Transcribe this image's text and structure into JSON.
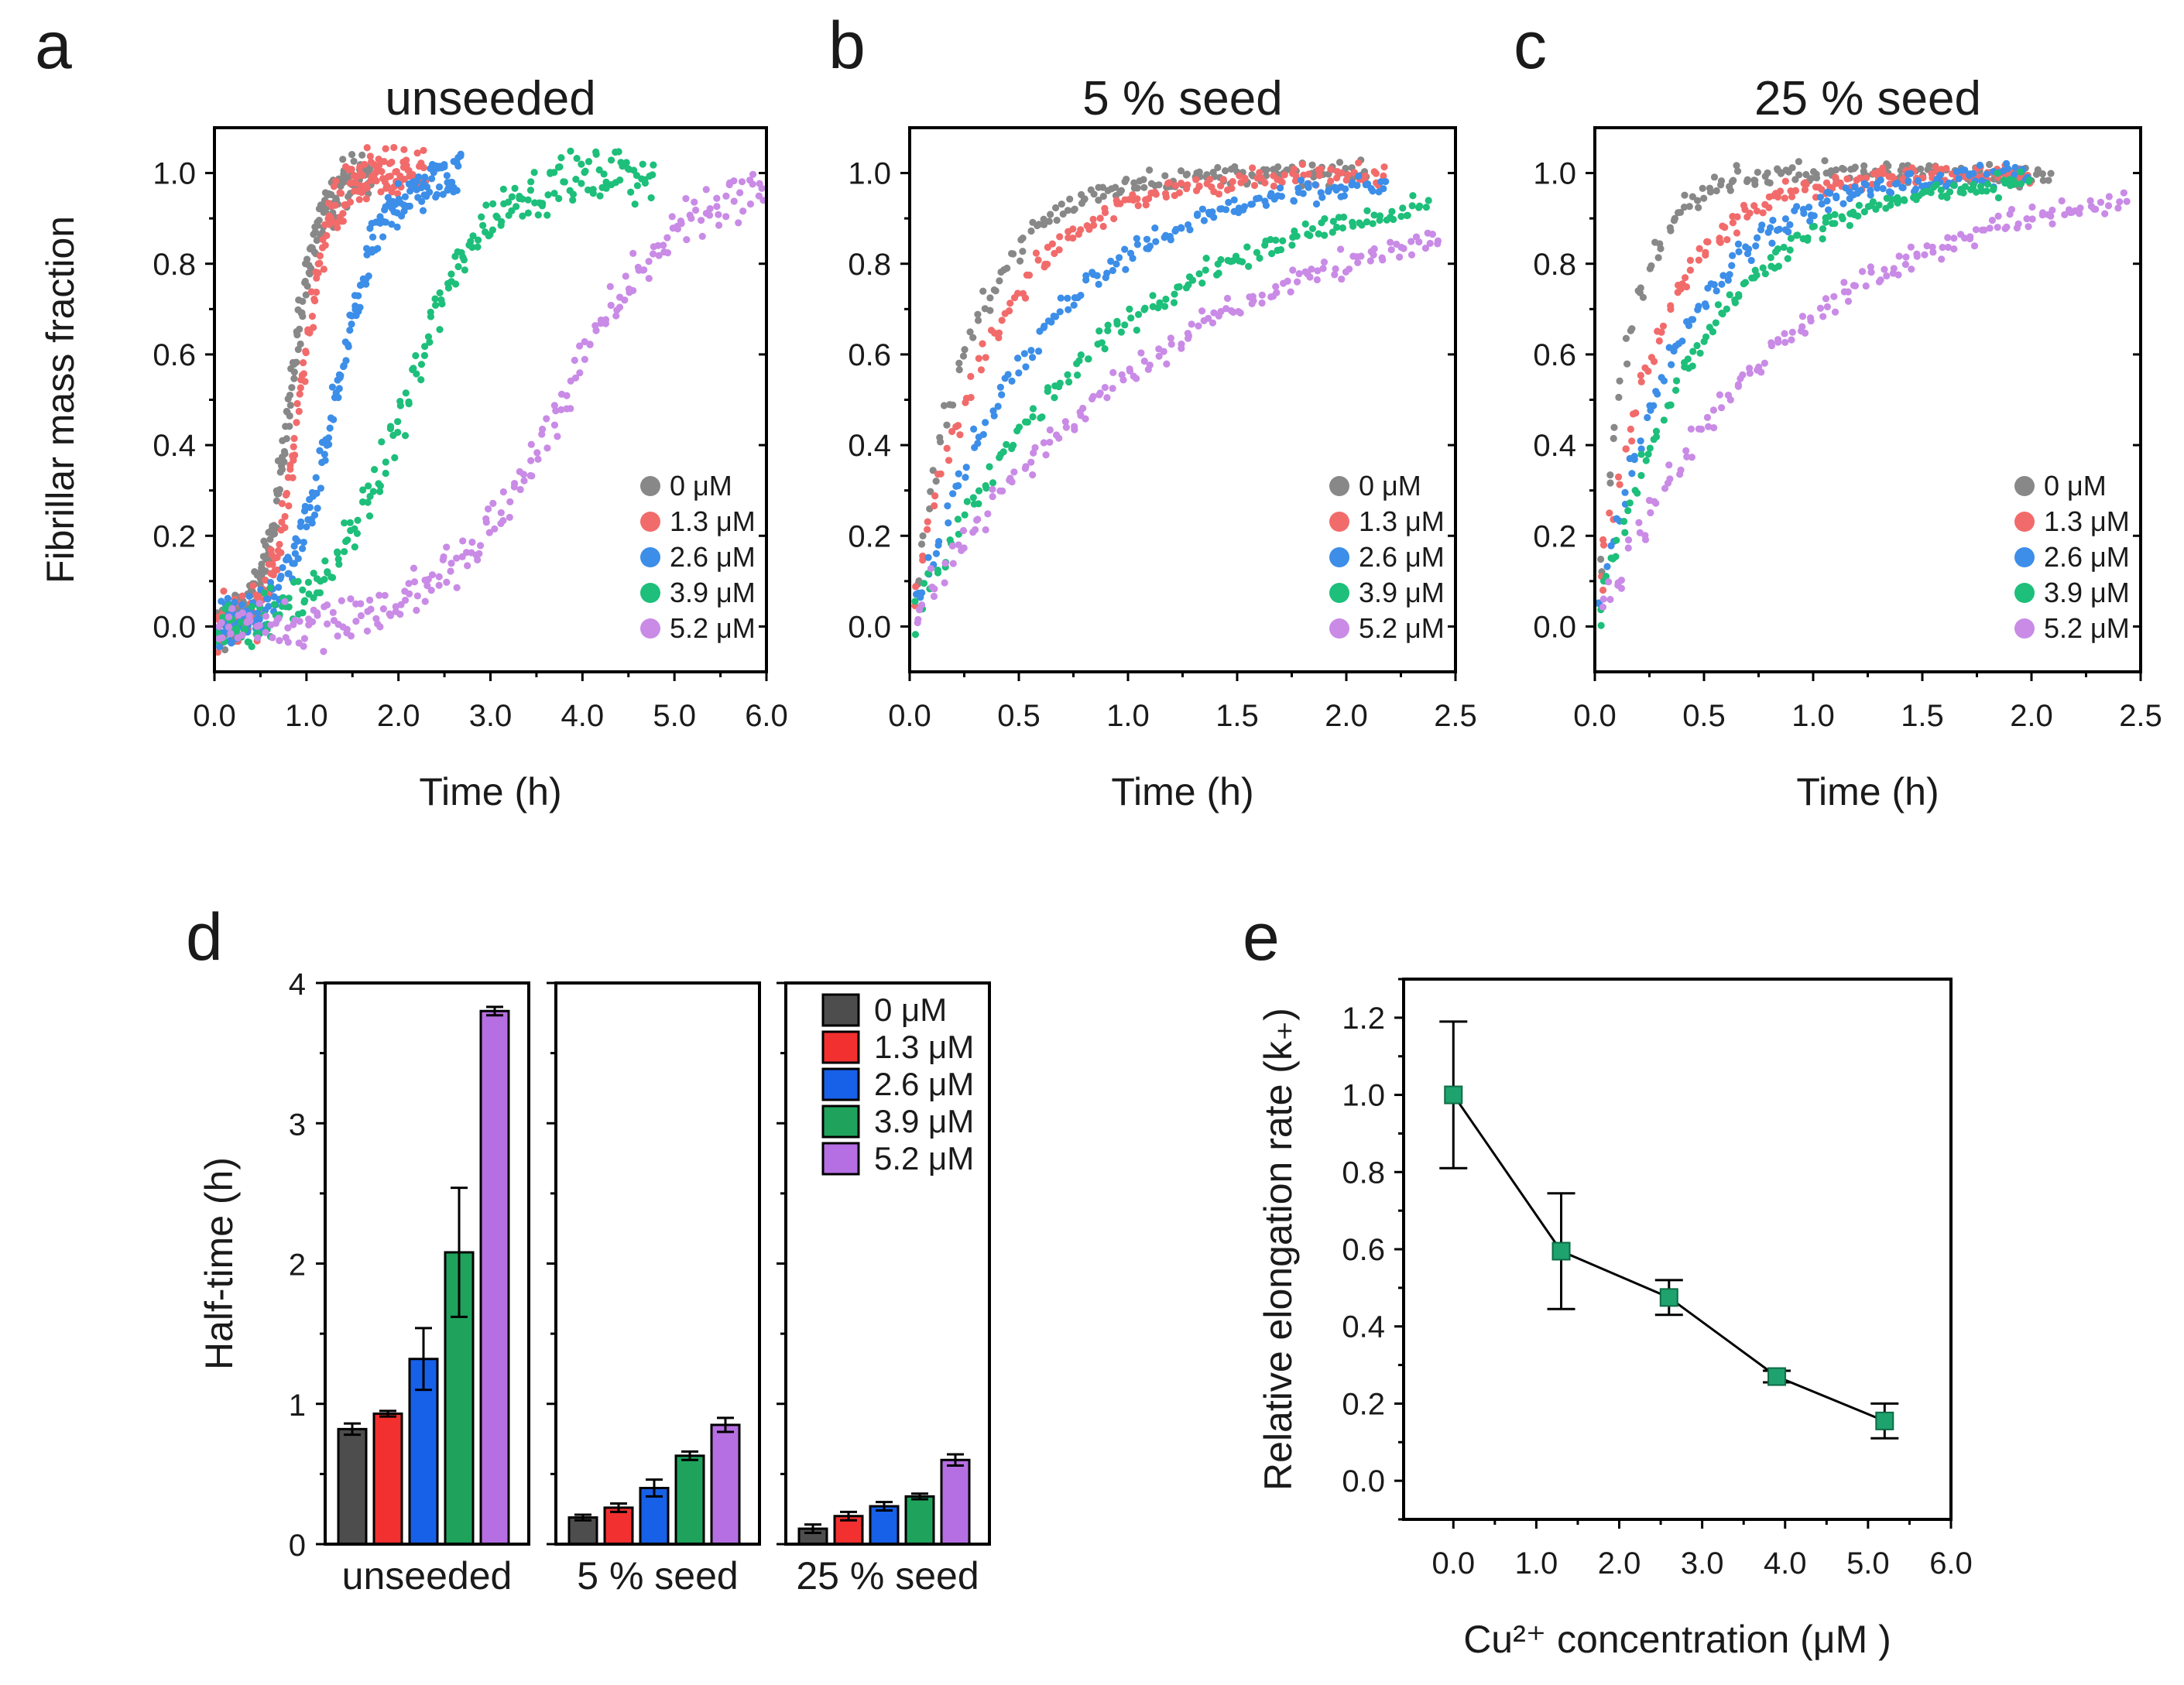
{
  "colors": {
    "scatter": [
      "#888888",
      "#f26b6b",
      "#3c8ee8",
      "#1dbf7a",
      "#c98be6"
    ],
    "bars": [
      "#4d4d4d",
      "#f23030",
      "#1760e8",
      "#1fa35c",
      "#b66fe2"
    ],
    "e_marker": "#1fa36e"
  },
  "chart_data": [
    {
      "type": "scatter",
      "panel": "a",
      "title": "unseeded",
      "xlabel": "Time (h)",
      "ylabel": "Fibrillar mass fraction",
      "xlim": [
        0,
        6
      ],
      "ylim": [
        -0.1,
        1.1
      ],
      "xticks": [
        0,
        1,
        2,
        3,
        4,
        5,
        6
      ],
      "xtick_labels": [
        "0.0",
        "1.0",
        "2.0",
        "3.0",
        "4.0",
        "5.0",
        "6.0"
      ],
      "yticks": [
        0,
        0.2,
        0.4,
        0.6,
        0.8,
        1.0
      ],
      "ytick_labels": [
        "0.0",
        "0.2",
        "0.4",
        "0.6",
        "0.8",
        "1.0"
      ],
      "legend": [
        "0 μM",
        "1.3 μM",
        "2.6 μM",
        "3.9 μM",
        "5.2 μM"
      ],
      "series_half_times": [
        0.82,
        0.93,
        1.32,
        2.08,
        3.8
      ],
      "series_rates": [
        6.5,
        6.5,
        4.0,
        2.4,
        1.6
      ],
      "series_tmax": [
        1.7,
        2.3,
        2.7,
        4.8,
        6.0
      ]
    },
    {
      "type": "scatter",
      "panel": "b",
      "title": "5 % seed",
      "xlabel": "Time (h)",
      "ylabel": "",
      "xlim": [
        0,
        2.5
      ],
      "ylim": [
        -0.1,
        1.1
      ],
      "xticks": [
        0,
        0.5,
        1,
        1.5,
        2,
        2.5
      ],
      "xtick_labels": [
        "0.0",
        "0.5",
        "1.0",
        "1.5",
        "2.0",
        "2.5"
      ],
      "yticks": [
        0,
        0.2,
        0.4,
        0.6,
        0.8,
        1.0
      ],
      "ytick_labels": [
        "0.0",
        "0.2",
        "0.4",
        "0.6",
        "0.8",
        "1.0"
      ],
      "legend": [
        "0 μM",
        "1.3 μM",
        "2.6 μM",
        "3.9 μM",
        "5.2 μM"
      ],
      "series_half_times": [
        0.19,
        0.26,
        0.4,
        0.63,
        0.85
      ],
      "series_rates": [
        7.5,
        6.5,
        5.0,
        3.6,
        3.0
      ],
      "series_tmax": [
        2.1,
        2.2,
        2.2,
        2.4,
        2.45
      ]
    },
    {
      "type": "scatter",
      "panel": "c",
      "title": "25 % seed",
      "xlabel": "Time (h)",
      "ylabel": "",
      "xlim": [
        0,
        2.5
      ],
      "ylim": [
        -0.1,
        1.1
      ],
      "xticks": [
        0,
        0.5,
        1,
        1.5,
        2,
        2.5
      ],
      "xtick_labels": [
        "0.0",
        "0.5",
        "1.0",
        "1.5",
        "2.0",
        "2.5"
      ],
      "yticks": [
        0,
        0.2,
        0.4,
        0.6,
        0.8,
        1.0
      ],
      "ytick_labels": [
        "0.0",
        "0.2",
        "0.4",
        "0.6",
        "0.8",
        "1.0"
      ],
      "legend": [
        "0 μM",
        "1.3 μM",
        "2.6 μM",
        "3.9 μM",
        "5.2 μM"
      ],
      "series_half_times": [
        0.11,
        0.2,
        0.27,
        0.34,
        0.6
      ],
      "series_rates": [
        6.0,
        5.5,
        5.0,
        4.2,
        3.5
      ],
      "series_tmax": [
        2.1,
        2.0,
        2.0,
        2.0,
        2.45
      ]
    },
    {
      "type": "bar",
      "panel": "d",
      "ylabel": "Half-time (h)",
      "ylim": [
        0,
        4
      ],
      "yticks": [
        0,
        1,
        2,
        3,
        4
      ],
      "ytick_labels": [
        "0",
        "1",
        "2",
        "3",
        "4"
      ],
      "groups": [
        "unseeded",
        "5 % seed",
        "25 % seed"
      ],
      "legend": [
        "0 μM",
        "1.3 μM",
        "2.6 μM",
        "3.9 μM",
        "5.2 μM"
      ],
      "series": [
        {
          "name": "0 μM",
          "values": [
            0.82,
            0.19,
            0.11
          ],
          "errors": [
            0.04,
            0.02,
            0.03
          ]
        },
        {
          "name": "1.3 μM",
          "values": [
            0.93,
            0.26,
            0.2
          ],
          "errors": [
            0.02,
            0.03,
            0.03
          ]
        },
        {
          "name": "2.6 μM",
          "values": [
            1.32,
            0.4,
            0.27
          ],
          "errors": [
            0.22,
            0.06,
            0.03
          ]
        },
        {
          "name": "3.9 μM",
          "values": [
            2.08,
            0.63,
            0.34
          ],
          "errors": [
            0.46,
            0.03,
            0.02
          ]
        },
        {
          "name": "5.2 μM",
          "values": [
            3.8,
            0.85,
            0.6
          ],
          "errors": [
            0.03,
            0.05,
            0.04
          ]
        }
      ]
    },
    {
      "type": "line",
      "panel": "e",
      "xlabel": "Cu²⁺ concentration (μM )",
      "ylabel": "Relative elongation rate (k₊)",
      "xlim": [
        -0.6,
        6
      ],
      "ylim": [
        -0.1,
        1.3
      ],
      "xticks": [
        0,
        1,
        2,
        3,
        4,
        5,
        6
      ],
      "xtick_labels": [
        "0.0",
        "1.0",
        "2.0",
        "3.0",
        "4.0",
        "5.0",
        "6.0"
      ],
      "yticks": [
        0,
        0.2,
        0.4,
        0.6,
        0.8,
        1.0,
        1.2
      ],
      "ytick_labels": [
        "0.0",
        "0.2",
        "0.4",
        "0.6",
        "0.8",
        "1.0",
        "1.2"
      ],
      "x": [
        0,
        1.3,
        2.6,
        3.9,
        5.2
      ],
      "y": [
        1.0,
        0.595,
        0.475,
        0.27,
        0.155
      ],
      "errors": [
        0.19,
        0.15,
        0.045,
        0.015,
        0.045
      ]
    }
  ]
}
